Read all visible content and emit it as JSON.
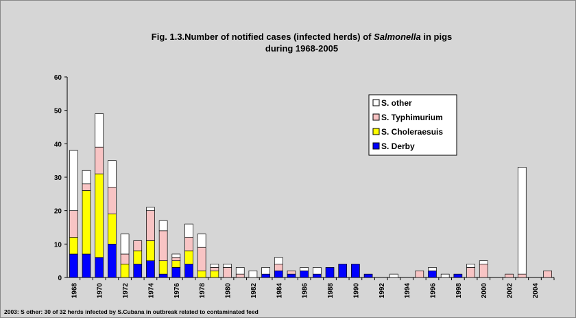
{
  "chart_data": {
    "type": "stacked_bar",
    "title_parts": [
      "Fig. 1.3.Number of notified cases (infected herds)  of ",
      "Salmonella",
      " in pigs"
    ],
    "title_line2": "during 1968-2005",
    "footnote": "2003: S other: 30 of 32 herds infected by S.Cubana in outbreak related to contaminated feed",
    "categories": [
      "1968",
      null,
      "1970",
      null,
      "1972",
      null,
      "1974",
      null,
      "1976",
      null,
      "1978",
      null,
      "1980",
      null,
      "1982",
      null,
      "1984",
      null,
      "1986",
      null,
      "1988",
      null,
      "1990",
      null,
      "1992",
      null,
      "1994",
      null,
      "1996",
      null,
      "1998",
      null,
      "2000",
      null,
      "2002",
      null,
      "2004",
      null
    ],
    "series": [
      {
        "name": "S. Derby",
        "color": "#0000ff",
        "values": [
          7,
          7,
          6,
          10,
          0,
          4,
          5,
          1,
          3,
          4,
          0,
          0,
          0,
          0,
          0,
          1,
          2,
          1,
          2,
          1,
          3,
          4,
          4,
          1,
          0,
          0,
          0,
          0,
          2,
          0,
          1,
          0,
          0,
          0,
          0,
          0,
          0,
          0
        ]
      },
      {
        "name": "S. Choleraesuis",
        "color": "#ffff00",
        "values": [
          5,
          19,
          25,
          9,
          4,
          4,
          6,
          4,
          2,
          4,
          2,
          2,
          0,
          0,
          0,
          0,
          0,
          0,
          0,
          0,
          0,
          0,
          0,
          0,
          0,
          0,
          0,
          0,
          0,
          0,
          0,
          0,
          0,
          0,
          0,
          0,
          0,
          0
        ]
      },
      {
        "name": "S. Typhimurium",
        "color": "#f8c4c4",
        "values": [
          8,
          2,
          8,
          8,
          3,
          3,
          9,
          9,
          1,
          4,
          7,
          1,
          3,
          1,
          0,
          0,
          2,
          1,
          0,
          0,
          0,
          0,
          0,
          0,
          0,
          0,
          0,
          2,
          0,
          0,
          0,
          3,
          4,
          0,
          1,
          1,
          0,
          2
        ]
      },
      {
        "name": "S. other",
        "color": "#ffffff",
        "values": [
          18,
          4,
          10,
          8,
          6,
          0,
          1,
          3,
          1,
          4,
          4,
          1,
          1,
          2,
          2,
          2,
          2,
          0,
          1,
          2,
          0,
          0,
          0,
          0,
          0,
          1,
          0,
          0,
          1,
          1,
          0,
          1,
          1,
          0,
          0,
          32,
          0,
          0
        ]
      }
    ],
    "ylim": [
      0,
      60
    ],
    "yticks": [
      0,
      10,
      20,
      30,
      40,
      50,
      60
    ]
  }
}
